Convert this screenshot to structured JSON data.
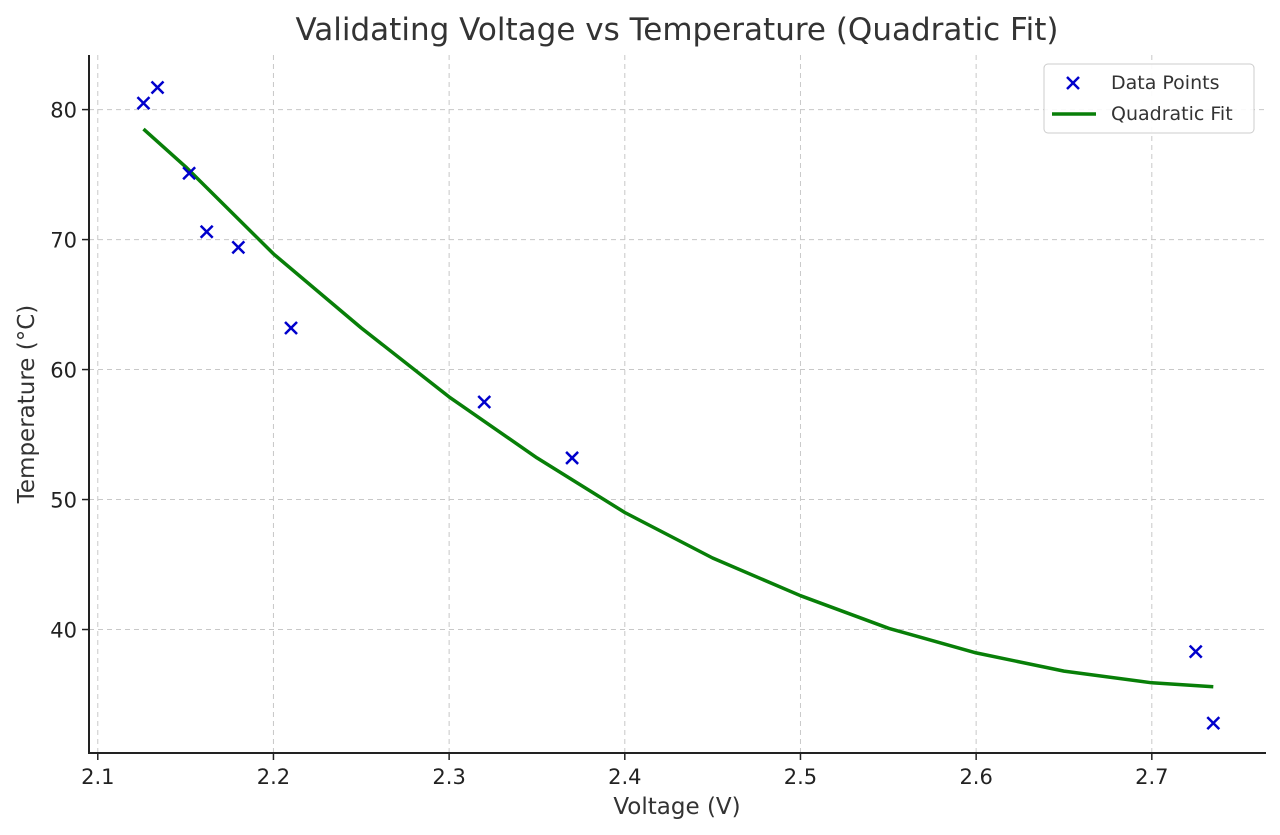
{
  "chart_data": {
    "type": "scatter",
    "title": "Validating Voltage vs Temperature (Quadratic Fit)",
    "xlabel": "Voltage (V)",
    "ylabel": "Temperature (°C)",
    "xlim": [
      2.095,
      2.765
    ],
    "ylim": [
      30.5,
      84.2
    ],
    "xticks": [
      2.1,
      2.2,
      2.3,
      2.4,
      2.5,
      2.6,
      2.7
    ],
    "yticks": [
      40,
      50,
      60,
      70,
      80
    ],
    "grid": true,
    "legend_position": "top-right",
    "series": [
      {
        "name": "Data Points",
        "kind": "scatter",
        "marker": "x",
        "color": "#0000cc",
        "x": [
          2.126,
          2.134,
          2.152,
          2.162,
          2.18,
          2.21,
          2.32,
          2.37,
          2.725,
          2.735
        ],
        "y": [
          80.5,
          81.7,
          75.1,
          70.6,
          69.4,
          63.2,
          57.5,
          53.2,
          38.3,
          32.8
        ]
      },
      {
        "name": "Quadratic Fit",
        "kind": "line",
        "color": "#087f08",
        "x": [
          2.126,
          2.15,
          2.2,
          2.25,
          2.3,
          2.35,
          2.4,
          2.45,
          2.5,
          2.55,
          2.6,
          2.65,
          2.7,
          2.735
        ],
        "y": [
          78.5,
          75.6,
          68.9,
          63.2,
          57.9,
          53.2,
          49.0,
          45.5,
          42.6,
          40.1,
          38.2,
          36.8,
          35.9,
          35.6
        ]
      }
    ]
  }
}
